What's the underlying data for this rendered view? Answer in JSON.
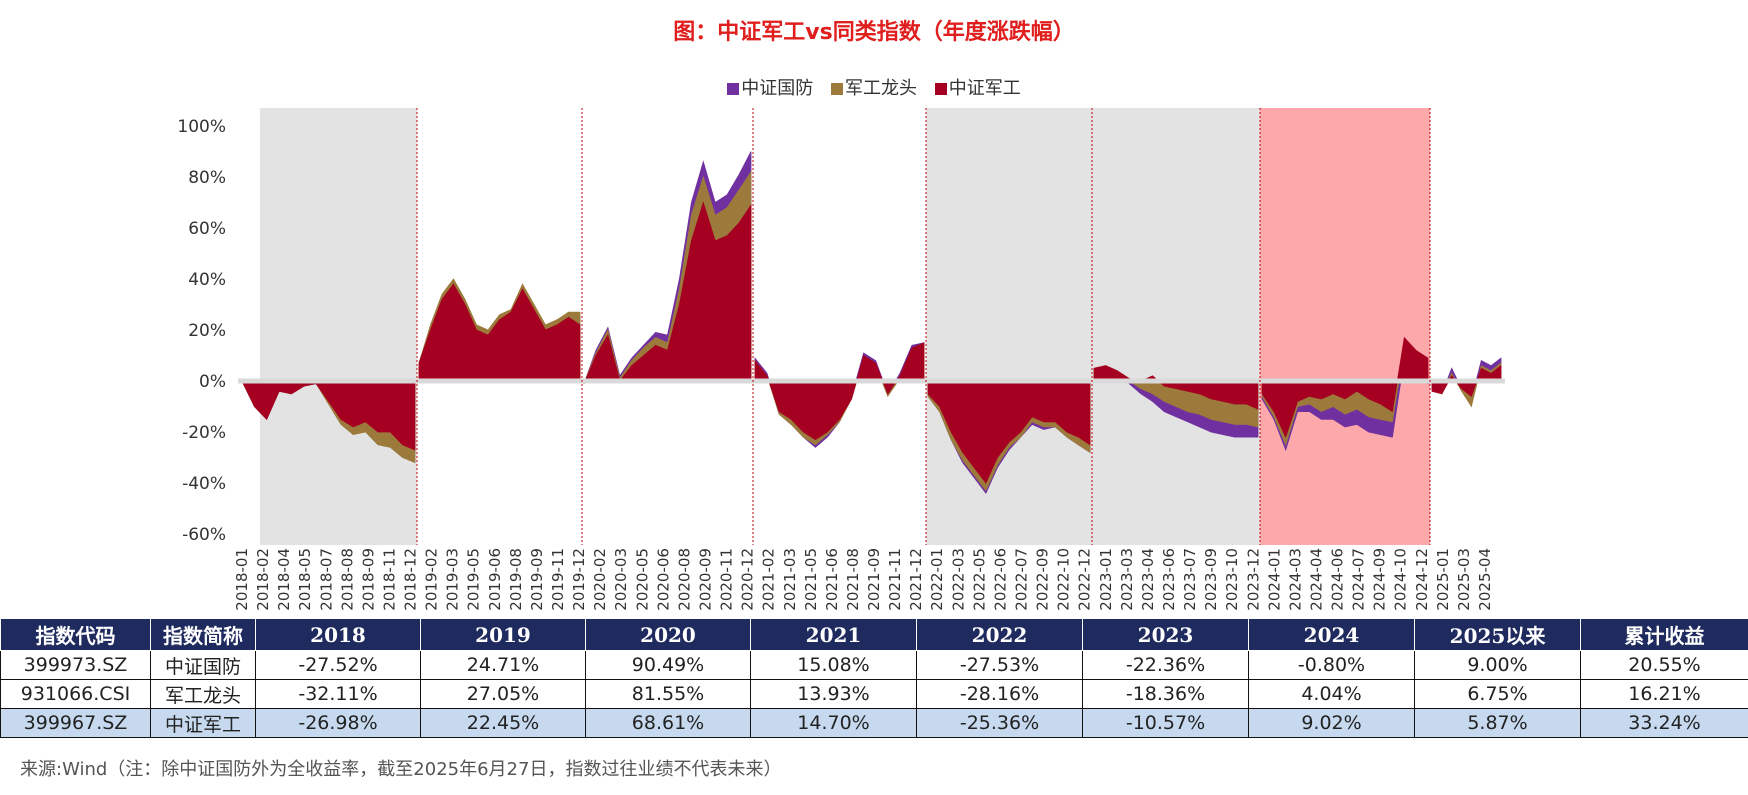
{
  "title": "图：中证军工vs同类指数（年度涨跌幅）",
  "legend": [
    {
      "name": "中证国防",
      "color": "#7030a0"
    },
    {
      "name": "军工龙头",
      "color": "#9c7a3c"
    },
    {
      "name": "中证军工",
      "color": "#a50021"
    }
  ],
  "chart_data": {
    "type": "area",
    "ylim": [
      -0.6,
      1.0
    ],
    "y_ticks": [
      "100%",
      "80%",
      "60%",
      "40%",
      "20%",
      "0%",
      "-20%",
      "-40%",
      "-60%"
    ],
    "x_tick_labels": [
      "2018-01",
      "2018-02",
      "2018-04",
      "2018-05",
      "2018-07",
      "2018-08",
      "2018-09",
      "2018-11",
      "2018-12",
      "2019-02",
      "2019-03",
      "2019-05",
      "2019-06",
      "2019-08",
      "2019-09",
      "2019-11",
      "2019-12",
      "2020-02",
      "2020-03",
      "2020-05",
      "2020-06",
      "2020-08",
      "2020-09",
      "2020-11",
      "2020-12",
      "2021-02",
      "2021-03",
      "2021-05",
      "2021-06",
      "2021-08",
      "2021-09",
      "2021-11",
      "2021-12",
      "2022-01",
      "2022-03",
      "2022-05",
      "2022-06",
      "2022-07",
      "2022-09",
      "2022-10",
      "2022-12",
      "2023-01",
      "2023-03",
      "2023-04",
      "2023-06",
      "2023-07",
      "2023-09",
      "2023-10",
      "2023-12",
      "2024-01",
      "2024-03",
      "2024-04",
      "2024-06",
      "2024-07",
      "2024-09",
      "2024-10",
      "2024-12",
      "2025-01",
      "2025-03",
      "2025-04"
    ],
    "year_bands": [
      {
        "year": "2018",
        "shade": "gray"
      },
      {
        "year": "2019",
        "shade": "none"
      },
      {
        "year": "2020",
        "shade": "none"
      },
      {
        "year": "2021",
        "shade": "none"
      },
      {
        "year": "2022",
        "shade": "gray"
      },
      {
        "year": "2023",
        "shade": "gray"
      },
      {
        "year": "2024",
        "shade": "pink"
      },
      {
        "year": "2025",
        "shade": "none"
      }
    ],
    "series_note": "Cumulative return within each year (approximate monthly readings)",
    "series": [
      {
        "name": "中证军工",
        "color": "#a50021",
        "points": [
          [
            "2018",
            [
              0.0,
              -0.1,
              -0.15,
              -0.04,
              -0.05,
              -0.02,
              -0.01,
              -0.08,
              -0.15,
              -0.18,
              -0.16,
              -0.2,
              -0.2,
              -0.25,
              -0.27
            ]
          ],
          [
            "2019",
            [
              0.07,
              0.2,
              0.32,
              0.38,
              0.3,
              0.2,
              0.18,
              0.24,
              0.27,
              0.36,
              0.28,
              0.2,
              0.22,
              0.25,
              0.22
            ]
          ],
          [
            "2020",
            [
              -0.01,
              0.1,
              0.18,
              0.0,
              0.06,
              0.1,
              0.14,
              0.12,
              0.3,
              0.55,
              0.7,
              0.55,
              0.57,
              0.62,
              0.69
            ]
          ],
          [
            "2021",
            [
              0.08,
              0.02,
              -0.12,
              -0.15,
              -0.2,
              -0.23,
              -0.2,
              -0.15,
              -0.07,
              0.1,
              0.07,
              -0.05,
              0.02,
              0.13,
              0.15
            ]
          ],
          [
            "2022",
            [
              -0.05,
              -0.1,
              -0.2,
              -0.28,
              -0.34,
              -0.4,
              -0.3,
              -0.24,
              -0.2,
              -0.14,
              -0.16,
              -0.16,
              -0.2,
              -0.22,
              -0.25
            ]
          ],
          [
            "2023",
            [
              0.05,
              0.06,
              0.04,
              0.01,
              0.0,
              0.02,
              -0.02,
              -0.03,
              -0.04,
              -0.05,
              -0.07,
              -0.08,
              -0.09,
              -0.09,
              -0.11
            ]
          ],
          [
            "2024",
            [
              -0.05,
              -0.12,
              -0.22,
              -0.08,
              -0.06,
              -0.07,
              -0.05,
              -0.07,
              -0.04,
              -0.07,
              -0.09,
              -0.12,
              0.17,
              0.12,
              0.09
            ]
          ],
          [
            "2025",
            [
              -0.04,
              -0.05,
              0.02,
              -0.03,
              -0.06,
              0.05,
              0.03,
              0.06
            ]
          ]
        ]
      },
      {
        "name": "军工龙头",
        "color": "#9c7a3c",
        "points": [
          [
            "2018",
            [
              0.0,
              -0.1,
              -0.15,
              -0.04,
              -0.05,
              -0.02,
              -0.01,
              -0.09,
              -0.17,
              -0.21,
              -0.2,
              -0.25,
              -0.26,
              -0.3,
              -0.32
            ]
          ],
          [
            "2019",
            [
              0.07,
              0.22,
              0.34,
              0.4,
              0.32,
              0.22,
              0.2,
              0.26,
              0.28,
              0.38,
              0.3,
              0.22,
              0.24,
              0.27,
              0.27
            ]
          ],
          [
            "2020",
            [
              -0.01,
              0.11,
              0.2,
              0.01,
              0.08,
              0.13,
              0.17,
              0.15,
              0.36,
              0.65,
              0.8,
              0.65,
              0.68,
              0.75,
              0.82
            ]
          ],
          [
            "2021",
            [
              0.08,
              0.02,
              -0.13,
              -0.17,
              -0.22,
              -0.25,
              -0.21,
              -0.16,
              -0.07,
              0.09,
              0.06,
              -0.06,
              0.01,
              0.12,
              0.14
            ]
          ],
          [
            "2022",
            [
              -0.06,
              -0.12,
              -0.23,
              -0.31,
              -0.37,
              -0.43,
              -0.33,
              -0.26,
              -0.22,
              -0.16,
              -0.18,
              -0.18,
              -0.22,
              -0.25,
              -0.28
            ]
          ],
          [
            "2023",
            [
              0.05,
              0.06,
              0.04,
              0.0,
              -0.03,
              -0.05,
              -0.08,
              -0.1,
              -0.12,
              -0.13,
              -0.15,
              -0.16,
              -0.17,
              -0.17,
              -0.18
            ]
          ],
          [
            "2024",
            [
              -0.06,
              -0.14,
              -0.25,
              -0.1,
              -0.09,
              -0.12,
              -0.1,
              -0.13,
              -0.11,
              -0.14,
              -0.15,
              -0.16,
              0.13,
              0.08,
              0.04
            ]
          ],
          [
            "2025",
            [
              -0.04,
              -0.05,
              0.03,
              -0.04,
              -0.1,
              0.06,
              0.04,
              0.07
            ]
          ]
        ]
      },
      {
        "name": "中证国防",
        "color": "#7030a0",
        "points": [
          [
            "2018",
            [
              0.0,
              -0.1,
              -0.15,
              -0.04,
              -0.05,
              -0.02,
              -0.01,
              -0.08,
              -0.16,
              -0.19,
              -0.17,
              -0.21,
              -0.21,
              -0.26,
              -0.28
            ]
          ],
          [
            "2019",
            [
              0.07,
              0.21,
              0.33,
              0.39,
              0.31,
              0.21,
              0.19,
              0.25,
              0.26,
              0.37,
              0.29,
              0.21,
              0.23,
              0.26,
              0.25
            ]
          ],
          [
            "2020",
            [
              -0.01,
              0.12,
              0.21,
              0.02,
              0.09,
              0.14,
              0.19,
              0.18,
              0.4,
              0.7,
              0.86,
              0.7,
              0.73,
              0.81,
              0.9
            ]
          ],
          [
            "2021",
            [
              0.09,
              0.03,
              -0.13,
              -0.17,
              -0.22,
              -0.26,
              -0.22,
              -0.16,
              -0.06,
              0.11,
              0.08,
              -0.05,
              0.03,
              0.14,
              0.15
            ]
          ],
          [
            "2022",
            [
              -0.06,
              -0.12,
              -0.23,
              -0.32,
              -0.38,
              -0.44,
              -0.34,
              -0.27,
              -0.22,
              -0.17,
              -0.19,
              -0.18,
              -0.22,
              -0.25,
              -0.28
            ]
          ],
          [
            "2023",
            [
              0.05,
              0.06,
              0.04,
              -0.01,
              -0.05,
              -0.08,
              -0.12,
              -0.14,
              -0.16,
              -0.18,
              -0.2,
              -0.21,
              -0.22,
              -0.22,
              -0.22
            ]
          ],
          [
            "2024",
            [
              -0.07,
              -0.15,
              -0.27,
              -0.12,
              -0.12,
              -0.15,
              -0.15,
              -0.18,
              -0.17,
              -0.2,
              -0.21,
              -0.22,
              0.09,
              0.03,
              -0.01
            ]
          ],
          [
            "2025",
            [
              -0.04,
              -0.05,
              0.05,
              -0.03,
              -0.07,
              0.08,
              0.06,
              0.09
            ]
          ]
        ]
      }
    ]
  },
  "table": {
    "headers": [
      "指数代码",
      "指数简称",
      "2018",
      "2019",
      "2020",
      "2021",
      "2022",
      "2023",
      "2024",
      "2025以来",
      "累计收益"
    ],
    "rows": [
      {
        "cells": [
          "399973.SZ",
          "中证国防",
          "-27.52%",
          "24.71%",
          "90.49%",
          "15.08%",
          "-27.53%",
          "-22.36%",
          "-0.80%",
          "9.00%",
          "20.55%"
        ],
        "highlight": false
      },
      {
        "cells": [
          "931066.CSI",
          "军工龙头",
          "-32.11%",
          "27.05%",
          "81.55%",
          "13.93%",
          "-28.16%",
          "-18.36%",
          "4.04%",
          "6.75%",
          "16.21%"
        ],
        "highlight": false
      },
      {
        "cells": [
          "399967.SZ",
          "中证军工",
          "-26.98%",
          "22.45%",
          "68.61%",
          "14.70%",
          "-25.36%",
          "-10.57%",
          "9.02%",
          "5.87%",
          "33.24%"
        ],
        "highlight": true
      }
    ]
  },
  "source": "来源:Wind（注：除中证国防外为全收益率，截至2025年6月27日，指数过往业绩不代表未来）"
}
